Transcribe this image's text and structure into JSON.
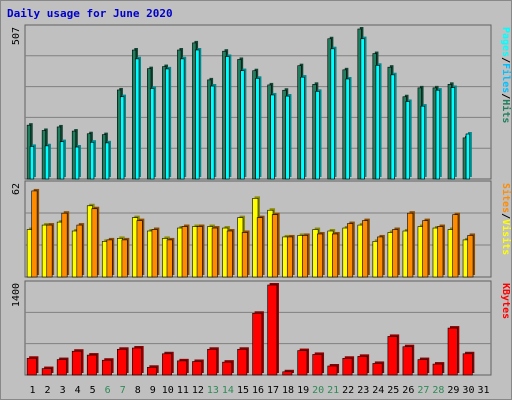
{
  "title": "Daily usage for June 2020",
  "colors": {
    "hits": "#1f7f5f",
    "files": "#00c0ff",
    "pages": "#00ffff",
    "visits": "#ffff00",
    "sites": "#ff8c00",
    "kbytes": "#ff0000",
    "weekday_label": "#000000",
    "weekend_label": "#2e8b57",
    "panel_bg": "#c0c0c0"
  },
  "chart_data": [
    {
      "type": "bar",
      "title": "Daily usage for June 2020",
      "panel": "hits-files-pages",
      "categories": [
        "1",
        "2",
        "3",
        "4",
        "5",
        "6",
        "7",
        "8",
        "9",
        "10",
        "11",
        "12",
        "13",
        "14",
        "15",
        "16",
        "17",
        "18",
        "19",
        "20",
        "21",
        "22",
        "23",
        "24",
        "25",
        "26",
        "27",
        "28",
        "29",
        "30",
        "31"
      ],
      "ylim": [
        0,
        507
      ],
      "ytick_label": "507",
      "legend": [
        "Pages",
        "/",
        "Files",
        "/",
        "Hits"
      ],
      "series": [
        {
          "name": "Hits",
          "values": [
            182,
            164,
            176,
            162,
            153,
            150,
            301,
            436,
            373,
            380,
            436,
            460,
            335,
            432,
            404,
            366,
            318,
            300,
            383,
            320,
            474,
            369,
            507,
            424,
            378,
            278,
            308,
            308,
            320,
            139,
            0
          ]
        },
        {
          "name": "Files",
          "values": [
            110,
            112,
            126,
            108,
            124,
            122,
            278,
            406,
            306,
            372,
            406,
            436,
            314,
            414,
            366,
            340,
            284,
            280,
            344,
            296,
            440,
            338,
            474,
            384,
            352,
            262,
            246,
            300,
            309,
            152,
            0
          ]
        },
        {
          "name": "Pages",
          "values": [
            110,
            112,
            126,
            108,
            124,
            122,
            278,
            406,
            306,
            372,
            406,
            436,
            314,
            414,
            366,
            340,
            284,
            280,
            344,
            296,
            440,
            338,
            474,
            384,
            352,
            262,
            246,
            300,
            309,
            152,
            0
          ]
        }
      ]
    },
    {
      "type": "bar",
      "panel": "visits-sites",
      "categories": [
        "1",
        "2",
        "3",
        "4",
        "5",
        "6",
        "7",
        "8",
        "9",
        "10",
        "11",
        "12",
        "13",
        "14",
        "15",
        "16",
        "17",
        "18",
        "19",
        "20",
        "21",
        "22",
        "23",
        "24",
        "25",
        "26",
        "27",
        "28",
        "29",
        "30",
        "31"
      ],
      "ylim": [
        0,
        62
      ],
      "ytick_label": "62",
      "legend": [
        "Sites",
        "/",
        "Visits"
      ],
      "series": [
        {
          "name": "Visits",
          "values": [
            32,
            35,
            37,
            31,
            48,
            24,
            26,
            40,
            31,
            26,
            33,
            34,
            34,
            33,
            40,
            53,
            45,
            27,
            28,
            32,
            31,
            33,
            35,
            24,
            30,
            31,
            34,
            33,
            32,
            25,
            0
          ]
        },
        {
          "name": "Sites",
          "values": [
            58,
            35,
            43,
            35,
            46,
            25,
            25,
            38,
            32,
            25,
            34,
            34,
            33,
            31,
            30,
            40,
            42,
            27,
            28,
            29,
            29,
            36,
            38,
            27,
            32,
            43,
            38,
            34,
            42,
            28,
            0
          ]
        }
      ]
    },
    {
      "type": "bar",
      "panel": "kbytes",
      "categories": [
        "1",
        "2",
        "3",
        "4",
        "5",
        "6",
        "7",
        "8",
        "9",
        "10",
        "11",
        "12",
        "13",
        "14",
        "15",
        "16",
        "17",
        "18",
        "19",
        "20",
        "21",
        "22",
        "23",
        "24",
        "25",
        "26",
        "27",
        "28",
        "29",
        "30",
        "31"
      ],
      "ylim": [
        0,
        1400
      ],
      "ytick_label": "1400",
      "legend": [
        "KBytes"
      ],
      "series": [
        {
          "name": "KBytes",
          "values": [
            260,
            100,
            240,
            370,
            310,
            230,
            400,
            420,
            120,
            330,
            220,
            210,
            400,
            200,
            400,
            960,
            1400,
            50,
            380,
            320,
            140,
            260,
            290,
            180,
            600,
            440,
            240,
            170,
            730,
            330,
            0
          ]
        }
      ]
    }
  ],
  "day_labels": [
    "1",
    "2",
    "3",
    "4",
    "5",
    "6",
    "7",
    "8",
    "9",
    "10",
    "11",
    "12",
    "13",
    "14",
    "15",
    "16",
    "17",
    "18",
    "19",
    "20",
    "21",
    "22",
    "23",
    "24",
    "25",
    "26",
    "27",
    "28",
    "29",
    "30",
    "31"
  ],
  "weekend_days": [
    "6",
    "7",
    "13",
    "14",
    "20",
    "21",
    "27",
    "28"
  ]
}
